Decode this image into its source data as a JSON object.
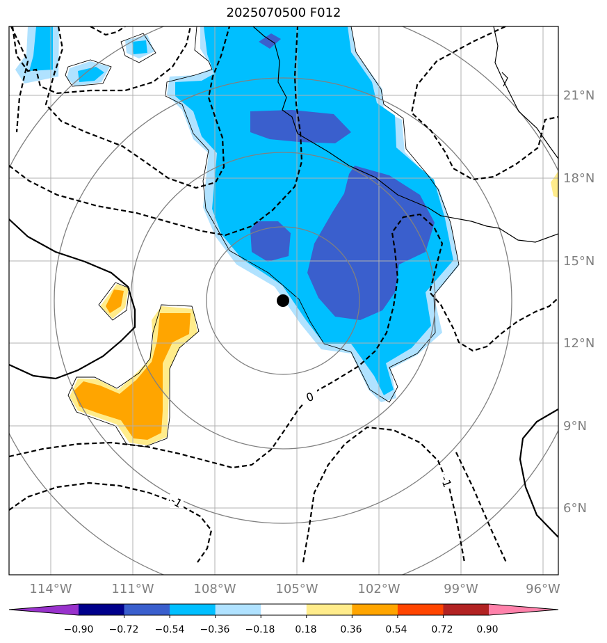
{
  "title": "2025070500 F012",
  "map": {
    "lon_labels": [
      "114°W",
      "111°W",
      "108°W",
      "105°W",
      "102°W",
      "99°W",
      "96°W"
    ],
    "lat_labels": [
      "21°N",
      "18°N",
      "15°N",
      "12°N",
      "9°N",
      "6°N"
    ],
    "contour_labels": [
      "0",
      "-1",
      "-1"
    ],
    "center_marker": "storm-center"
  },
  "colorbar": {
    "ticks": [
      "−0.90",
      "−0.72",
      "−0.54",
      "−0.36",
      "−0.18",
      "0.18",
      "0.36",
      "0.54",
      "0.72",
      "0.90"
    ],
    "colors": [
      "#9932cc",
      "#00008b",
      "#3a5fcd",
      "#00bfff",
      "#b0e2ff",
      "#ffffff",
      "#ffec8b",
      "#ffa500",
      "#ff4500",
      "#b22222",
      "#ff82ab"
    ]
  }
}
